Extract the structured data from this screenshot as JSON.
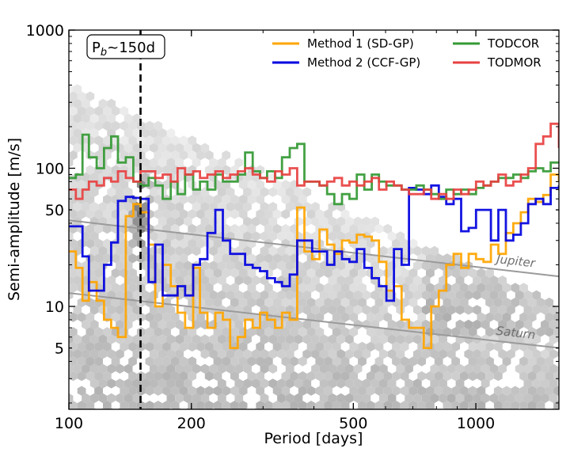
{
  "chart_data": {
    "type": "line",
    "xlabel": "Period [days]",
    "ylabel": "Semi-amplitude [m/s]",
    "xscale": "log",
    "yscale": "log",
    "xlim": [
      100,
      1600
    ],
    "ylim": [
      1.8,
      1000
    ],
    "xticks": [
      100,
      200,
      500,
      1000
    ],
    "xtick_labels": [
      "100",
      "200",
      "500",
      "1000"
    ],
    "yticks": [
      5,
      10,
      50,
      100,
      1000
    ],
    "ytick_labels": [
      "5",
      "10",
      "50",
      "100",
      "1000"
    ],
    "legend_placement": "top-right",
    "annotation": {
      "text_main": "P",
      "text_sub": "b",
      "text_rest": "~150d",
      "x": 150
    },
    "reference_lines": [
      {
        "name": "Jupiter",
        "x": [
          100,
          1600
        ],
        "y": [
          42,
          16.5
        ]
      },
      {
        "name": "Saturn",
        "x": [
          100,
          1600
        ],
        "y": [
          12.5,
          5.0
        ]
      }
    ],
    "series": [
      {
        "name": "Method 1 (SD-GP)",
        "color": "#ffa500",
        "x": [
          100,
          104,
          108,
          112,
          117,
          122,
          127,
          132,
          138,
          144,
          150,
          157,
          163,
          170,
          178,
          185,
          193,
          202,
          210,
          219,
          229,
          239,
          249,
          260,
          271,
          283,
          295,
          307,
          321,
          334,
          349,
          364,
          379,
          396,
          413,
          431,
          449,
          469,
          489,
          510,
          532,
          555,
          578,
          603,
          629,
          657,
          685,
          714,
          745,
          777,
          811,
          846,
          882,
          920,
          960,
          1001,
          1044,
          1089,
          1136,
          1185,
          1236,
          1290,
          1345,
          1403,
          1464,
          1527,
          1600
        ],
        "y": [
          25,
          19,
          11,
          15,
          11,
          8,
          7,
          6,
          45,
          55,
          48,
          28,
          10,
          20,
          14,
          9,
          7,
          19,
          9,
          7,
          9,
          8,
          5,
          6,
          8,
          7,
          9,
          8,
          7,
          9,
          8,
          52,
          25,
          22,
          36,
          28,
          24,
          30,
          29,
          33,
          32,
          30,
          21,
          13,
          14,
          8,
          7,
          7,
          5,
          10,
          13,
          20,
          24,
          19,
          24,
          22,
          21,
          28,
          24,
          34,
          40,
          48,
          60,
          57,
          64,
          90,
          80
        ]
      },
      {
        "name": "Method 2 (CCF-GP)",
        "color": "#0000e0",
        "x": [
          100,
          104,
          108,
          112,
          117,
          122,
          127,
          132,
          138,
          144,
          150,
          157,
          163,
          170,
          178,
          185,
          193,
          202,
          210,
          219,
          229,
          239,
          249,
          260,
          271,
          283,
          295,
          307,
          321,
          334,
          349,
          364,
          379,
          396,
          413,
          431,
          449,
          469,
          489,
          510,
          532,
          555,
          578,
          603,
          629,
          657,
          685,
          714,
          745,
          777,
          811,
          846,
          882,
          920,
          960,
          1001,
          1044,
          1089,
          1136,
          1185,
          1236,
          1290,
          1345,
          1403,
          1464,
          1527,
          1600
        ],
        "y": [
          38,
          38,
          23,
          13,
          13,
          20,
          29,
          58,
          62,
          61,
          60,
          15,
          28,
          12,
          12,
          14,
          12,
          20,
          22,
          34,
          50,
          30,
          24,
          24,
          20,
          19,
          18,
          16,
          15,
          14,
          17,
          30,
          30,
          25,
          25,
          20,
          25,
          22,
          21,
          26,
          19,
          16,
          14,
          11,
          26,
          20,
          72,
          70,
          65,
          75,
          62,
          55,
          60,
          35,
          37,
          50,
          50,
          30,
          50,
          30,
          33,
          40,
          55,
          60,
          55,
          72,
          75
        ]
      },
      {
        "name": "TODCOR",
        "color": "#339933",
        "x": [
          100,
          104,
          108,
          112,
          117,
          122,
          127,
          132,
          138,
          144,
          150,
          157,
          163,
          170,
          178,
          185,
          193,
          202,
          210,
          219,
          229,
          239,
          249,
          260,
          271,
          283,
          295,
          307,
          321,
          334,
          349,
          364,
          379,
          396,
          413,
          431,
          449,
          469,
          489,
          510,
          532,
          555,
          578,
          603,
          629,
          657,
          685,
          714,
          745,
          777,
          811,
          846,
          882,
          920,
          960,
          1001,
          1044,
          1089,
          1136,
          1185,
          1236,
          1290,
          1345,
          1403,
          1464,
          1527,
          1600
        ],
        "y": [
          85,
          90,
          175,
          120,
          100,
          140,
          170,
          110,
          120,
          80,
          75,
          85,
          75,
          60,
          80,
          65,
          90,
          70,
          80,
          70,
          90,
          80,
          80,
          90,
          130,
          95,
          85,
          95,
          85,
          120,
          140,
          150,
          80,
          80,
          75,
          65,
          55,
          65,
          60,
          90,
          70,
          90,
          80,
          75,
          75,
          70,
          70,
          75,
          70,
          65,
          60,
          70,
          65,
          70,
          65,
          72,
          75,
          80,
          85,
          85,
          90,
          85,
          95,
          100,
          95,
          110,
          110
        ]
      },
      {
        "name": "TODMOR",
        "color": "#e84040",
        "x": [
          100,
          104,
          108,
          112,
          117,
          122,
          127,
          132,
          138,
          144,
          150,
          157,
          163,
          170,
          178,
          185,
          193,
          202,
          210,
          219,
          229,
          239,
          249,
          260,
          271,
          283,
          295,
          307,
          321,
          334,
          349,
          364,
          379,
          396,
          413,
          431,
          449,
          469,
          489,
          510,
          532,
          555,
          578,
          603,
          629,
          657,
          685,
          714,
          745,
          777,
          811,
          846,
          882,
          920,
          960,
          1001,
          1044,
          1089,
          1136,
          1185,
          1236,
          1290,
          1345,
          1403,
          1464,
          1527,
          1600
        ],
        "y": [
          70,
          60,
          70,
          80,
          75,
          85,
          80,
          95,
          85,
          80,
          95,
          95,
          85,
          90,
          80,
          100,
          90,
          95,
          85,
          90,
          95,
          85,
          90,
          95,
          100,
          90,
          85,
          80,
          95,
          90,
          100,
          75,
          80,
          80,
          75,
          80,
          85,
          75,
          80,
          75,
          80,
          85,
          70,
          80,
          75,
          70,
          65,
          65,
          70,
          60,
          65,
          60,
          70,
          65,
          70,
          80,
          75,
          80,
          90,
          75,
          80,
          90,
          100,
          150,
          170,
          210,
          140
        ]
      }
    ]
  }
}
